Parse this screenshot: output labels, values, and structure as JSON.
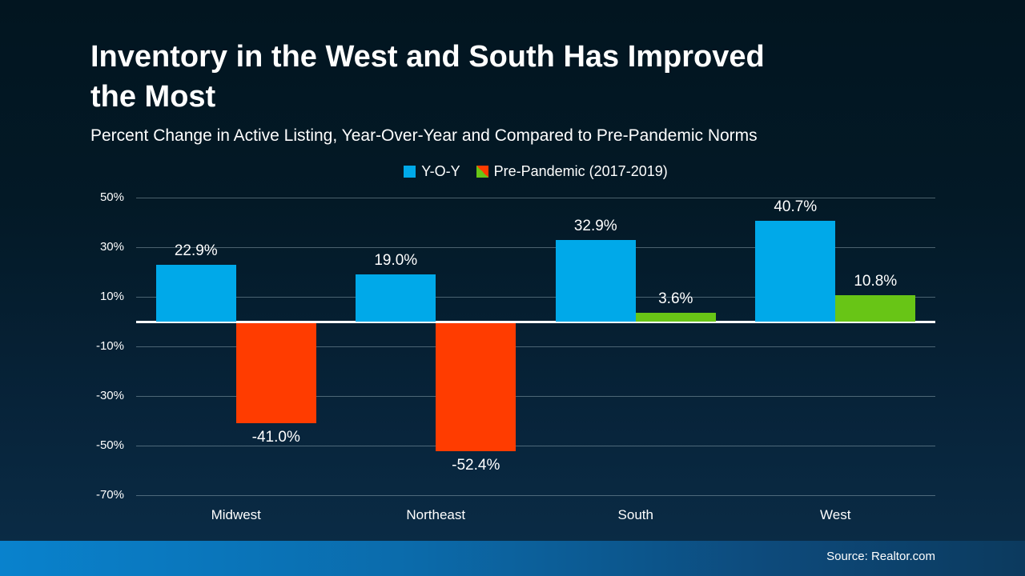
{
  "slide": {
    "title_line1": "Inventory in the West and South Has Improved",
    "title_line2": "the Most",
    "subtitle": "Percent Change in Active Listing, Year-Over-Year and Compared to Pre-Pandemic Norms",
    "source": "Source: Realtor.com"
  },
  "legend": {
    "items": [
      {
        "label": "Y-O-Y",
        "swatch": "blue"
      },
      {
        "label": "Pre-Pandemic (2017-2019)",
        "swatch": "green-red-split"
      }
    ]
  },
  "colors": {
    "yoy_bar": "#00a9e9",
    "prepandemic_positive_bar": "#68c516",
    "prepandemic_negative_bar": "#ff3c00",
    "zero_line": "#ffffff",
    "gridline": "rgba(175,195,205,0.42)",
    "background_top": "#021520",
    "background_bottom": "#0b2d48",
    "footer_left": "#0982cd",
    "footer_right": "#0c3a5e",
    "text": "#ffffff"
  },
  "chart_data": {
    "type": "bar",
    "title": "Inventory in the West and South Has Improved the Most",
    "subtitle": "Percent Change in Active Listing, Year-Over-Year and Compared to Pre-Pandemic Norms",
    "categories": [
      "Midwest",
      "Northeast",
      "South",
      "West"
    ],
    "series": [
      {
        "name": "Y-O-Y",
        "values": [
          22.9,
          19.0,
          32.9,
          40.7
        ]
      },
      {
        "name": "Pre-Pandemic (2017-2019)",
        "values": [
          -41.0,
          -52.4,
          3.6,
          10.8
        ]
      }
    ],
    "value_labels": [
      [
        "22.9%",
        "19.0%",
        "32.9%",
        "40.7%"
      ],
      [
        "-41.0%",
        "-52.4%",
        "3.6%",
        "10.8%"
      ]
    ],
    "yticks": [
      50,
      30,
      10,
      -10,
      -30,
      -50,
      -70
    ],
    "ytick_labels": [
      "50%",
      "30%",
      "10%",
      "-10%",
      "-30%",
      "-50%",
      "-70%"
    ],
    "ylim": [
      -70,
      50
    ],
    "xlabel": "",
    "ylabel": "",
    "grid": true,
    "legend_position": "top-center",
    "source": "Source: Realtor.com"
  }
}
